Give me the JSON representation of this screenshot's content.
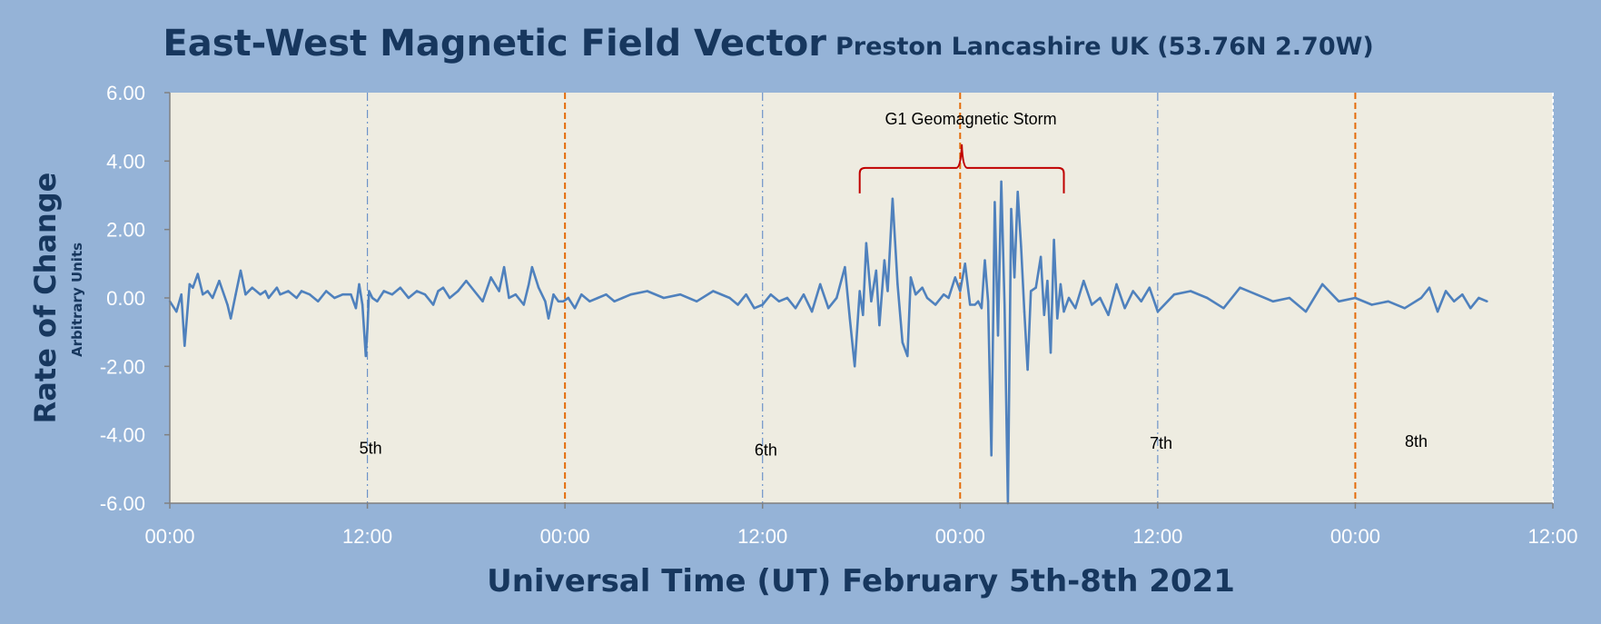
{
  "chart_data": {
    "type": "line",
    "title": "East-West Magnetic Field Vector",
    "subtitle": "Preston Lancashire UK (53.76N 2.70W)",
    "ylabel": "Rate of Change",
    "ylabel_sub": "Arbitrary Units",
    "xlabel": "Universal Time (UT) February 5th-8th 2021",
    "ylim": [
      -6,
      6
    ],
    "yticks": [
      "6.00",
      "4.00",
      "2.00",
      "0.00",
      "-2.00",
      "-4.00",
      "-6.00"
    ],
    "xlim_hours": [
      0,
      84
    ],
    "xticks": [
      "00:00",
      "12:00",
      "00:00",
      "12:00",
      "00:00",
      "12:00",
      "00:00",
      "12:00"
    ],
    "grid": false,
    "day_labels": [
      {
        "text": "5th",
        "hour": 12.2,
        "y": -4.4
      },
      {
        "text": "6th",
        "hour": 36.2,
        "y": -4.45
      },
      {
        "text": "7th",
        "hour": 60.2,
        "y": -4.25
      },
      {
        "text": "8th",
        "hour": 75.7,
        "y": -4.2
      }
    ],
    "midnight_lines_hours": [
      24,
      48,
      72
    ],
    "noon_lines_hours": [
      12,
      36,
      60
    ],
    "annotation": {
      "text": "G1 Geomagnetic Storm",
      "start_hour": 41.9,
      "end_hour": 54.3,
      "y": 3.8
    },
    "series": [
      {
        "color": "#4f81bd",
        "x_hours": [
          0,
          0.4,
          0.7,
          0.9,
          1.2,
          1.4,
          1.7,
          2.0,
          2.3,
          2.6,
          3.0,
          3.5,
          3.7,
          4.0,
          4.3,
          4.6,
          5.0,
          5.5,
          5.8,
          6.0,
          6.5,
          6.7,
          7.2,
          7.7,
          8.0,
          8.5,
          9.0,
          9.5,
          10.0,
          10.5,
          11.0,
          11.3,
          11.5,
          11.7,
          11.9,
          12.0,
          12.1,
          12.3,
          12.6,
          13.0,
          13.5,
          14.0,
          14.5,
          15.0,
          15.5,
          16.0,
          16.3,
          16.6,
          17.0,
          17.5,
          18.0,
          18.5,
          19.0,
          19.5,
          20.0,
          20.3,
          20.6,
          21.0,
          21.5,
          21.8,
          22.0,
          22.4,
          22.8,
          23.0,
          23.3,
          23.6,
          23.9,
          24.2,
          24.6,
          25.0,
          25.5,
          26.0,
          26.5,
          27.0,
          27.5,
          28.0,
          29.0,
          30.0,
          31.0,
          32.0,
          33.0,
          34.0,
          34.5,
          35.0,
          35.5,
          36.0,
          36.5,
          37.0,
          37.5,
          38.0,
          38.5,
          39.0,
          39.5,
          40.0,
          40.5,
          41.0,
          41.3,
          41.6,
          41.9,
          42.1,
          42.3,
          42.6,
          42.9,
          43.1,
          43.4,
          43.6,
          43.9,
          44.2,
          44.5,
          44.8,
          45.0,
          45.3,
          45.7,
          46.0,
          46.5,
          47.0,
          47.3,
          47.7,
          48.0,
          48.3,
          48.6,
          48.9,
          49.1,
          49.3,
          49.5,
          49.7,
          49.9,
          50.1,
          50.3,
          50.5,
          50.7,
          50.9,
          51.1,
          51.3,
          51.5,
          51.7,
          51.9,
          52.1,
          52.3,
          52.6,
          52.9,
          53.1,
          53.3,
          53.5,
          53.7,
          53.9,
          54.1,
          54.3,
          54.6,
          55.0,
          55.5,
          56.0,
          56.5,
          57.0,
          57.5,
          58.0,
          58.5,
          59.0,
          59.5,
          60.0,
          61.0,
          62.0,
          63.0,
          64.0,
          65.0,
          66.0,
          67.0,
          68.0,
          69.0,
          70.0,
          71.0,
          72.0,
          73.0,
          74.0,
          75.0,
          76.0,
          76.5,
          77.0,
          77.5,
          78.0,
          78.5,
          79.0,
          79.5,
          80.0
        ],
        "values": [
          -0.1,
          -0.4,
          0.1,
          -1.4,
          0.4,
          0.3,
          0.7,
          0.1,
          0.2,
          0.0,
          0.5,
          -0.2,
          -0.6,
          0.1,
          0.8,
          0.1,
          0.3,
          0.1,
          0.2,
          0.0,
          0.3,
          0.1,
          0.2,
          0.0,
          0.2,
          0.1,
          -0.1,
          0.2,
          0.0,
          0.1,
          0.1,
          -0.3,
          0.4,
          -0.2,
          -1.7,
          -0.9,
          0.2,
          0.0,
          -0.1,
          0.2,
          0.1,
          0.3,
          0.0,
          0.2,
          0.1,
          -0.2,
          0.2,
          0.3,
          0.0,
          0.2,
          0.5,
          0.2,
          -0.1,
          0.6,
          0.2,
          0.9,
          0.0,
          0.1,
          -0.2,
          0.4,
          0.9,
          0.3,
          -0.1,
          -0.6,
          0.1,
          -0.1,
          -0.1,
          0.0,
          -0.3,
          0.1,
          -0.1,
          0.0,
          0.1,
          -0.1,
          0.0,
          0.1,
          0.2,
          0.0,
          0.1,
          -0.1,
          0.2,
          0.0,
          -0.2,
          0.1,
          -0.3,
          -0.2,
          0.1,
          -0.1,
          0.0,
          -0.3,
          0.1,
          -0.4,
          0.4,
          -0.3,
          0.0,
          0.9,
          -0.6,
          -2.0,
          0.2,
          -0.5,
          1.6,
          -0.1,
          0.8,
          -0.8,
          1.1,
          0.2,
          2.9,
          0.4,
          -1.3,
          -1.7,
          0.6,
          0.1,
          0.3,
          0.0,
          -0.2,
          0.1,
          0.0,
          0.6,
          0.2,
          1.0,
          -0.2,
          -0.2,
          -0.1,
          -0.3,
          1.1,
          -0.1,
          -4.6,
          2.8,
          -1.1,
          3.4,
          -0.2,
          -6.0,
          2.6,
          0.6,
          3.1,
          1.5,
          -0.4,
          -2.1,
          0.2,
          0.3,
          1.2,
          -0.5,
          0.5,
          -1.6,
          1.7,
          -0.6,
          0.4,
          -0.4,
          0.0,
          -0.3,
          0.5,
          -0.2,
          0.0,
          -0.5,
          0.4,
          -0.3,
          0.2,
          -0.1,
          0.3,
          -0.4,
          0.1,
          0.2,
          0.0,
          -0.3,
          0.3,
          0.1,
          -0.1,
          0.0,
          -0.4,
          0.4,
          -0.1,
          0.0,
          -0.2,
          -0.1,
          -0.3,
          0.0,
          0.3,
          -0.4,
          0.2,
          -0.1,
          0.1,
          -0.3,
          0.0,
          -0.1
        ]
      }
    ]
  }
}
